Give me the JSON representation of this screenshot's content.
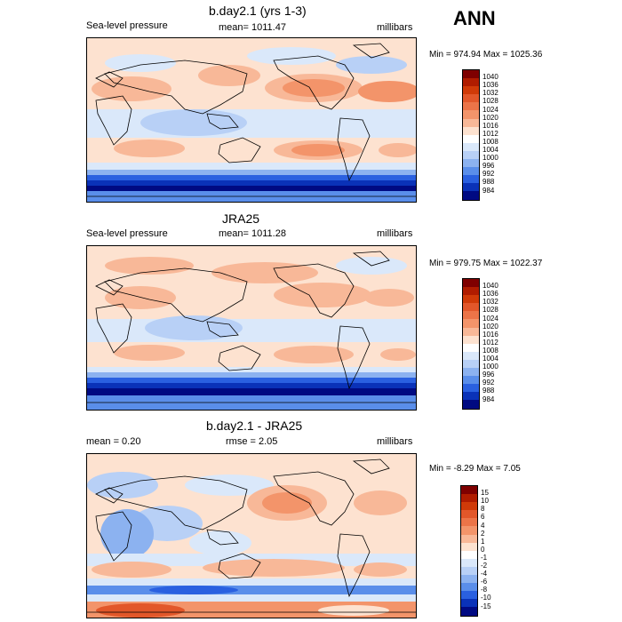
{
  "season": "ANN",
  "units": "millibars",
  "panels": [
    {
      "title": "b.day2.1 (yrs 1-3)",
      "left_label": "Sea-level pressure",
      "center_label": "mean= 1011.47",
      "right_label": "millibars",
      "minmax": "Min = 974.94 Max = 1025.36",
      "colorbar": {
        "labels": [
          "1040",
          "1036",
          "1032",
          "1028",
          "1024",
          "1020",
          "1016",
          "1012",
          "1008",
          "1004",
          "1000",
          "996",
          "992",
          "988",
          "984"
        ],
        "colors": [
          "#7f0000",
          "#b01c00",
          "#d03a08",
          "#e2572a",
          "#ec7448",
          "#f3946a",
          "#f8b898",
          "#fde2d0",
          "#ffffff",
          "#dae8fa",
          "#b8d0f6",
          "#8cb2f0",
          "#5a8eea",
          "#2a60e0",
          "#0a32b8",
          "#000a82"
        ]
      }
    },
    {
      "title": "JRA25",
      "left_label": "Sea-level pressure",
      "center_label": "mean= 1011.28",
      "right_label": "millibars",
      "minmax": "Min = 979.75 Max = 1022.37",
      "colorbar": {
        "labels": [
          "1040",
          "1036",
          "1032",
          "1028",
          "1024",
          "1020",
          "1016",
          "1012",
          "1008",
          "1004",
          "1000",
          "996",
          "992",
          "988",
          "984"
        ],
        "colors": [
          "#7f0000",
          "#b01c00",
          "#d03a08",
          "#e2572a",
          "#ec7448",
          "#f3946a",
          "#f8b898",
          "#fde2d0",
          "#ffffff",
          "#dae8fa",
          "#b8d0f6",
          "#8cb2f0",
          "#5a8eea",
          "#2a60e0",
          "#0a32b8",
          "#000a82"
        ]
      }
    },
    {
      "title": "b.day2.1 - JRA25",
      "left_label": "mean =   0.20",
      "center_label": "rmse =   2.05",
      "right_label": "millibars",
      "minmax": "Min =  -8.29 Max =   7.05",
      "colorbar": {
        "labels": [
          "15",
          "10",
          "8",
          "6",
          "4",
          "2",
          "1",
          "0",
          "-1",
          "-2",
          "-4",
          "-6",
          "-8",
          "-10",
          "-15"
        ],
        "colors": [
          "#7f0000",
          "#b01c00",
          "#d03a08",
          "#e2572a",
          "#ec7448",
          "#f3946a",
          "#f8b898",
          "#fde2d0",
          "#ffffff",
          "#dae8fa",
          "#b8d0f6",
          "#8cb2f0",
          "#5a8eea",
          "#2a60e0",
          "#0a32b8",
          "#000a82"
        ]
      }
    }
  ]
}
